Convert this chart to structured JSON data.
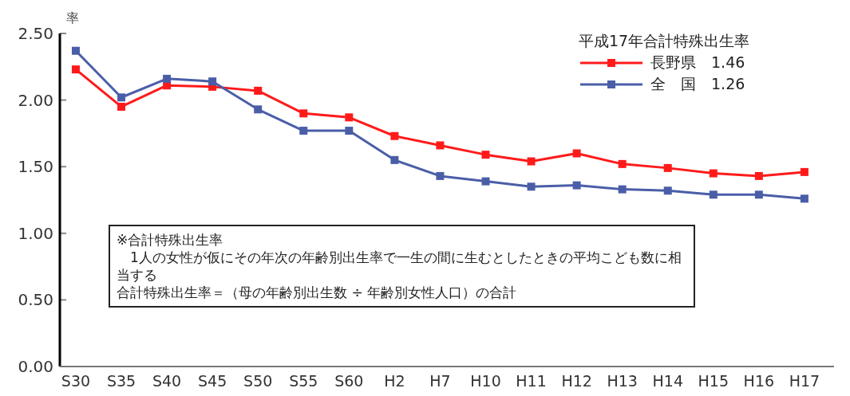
{
  "chart_data": {
    "type": "line",
    "categories": [
      "S30",
      "S35",
      "S40",
      "S45",
      "S50",
      "S55",
      "S60",
      "H2",
      "H7",
      "H10",
      "H11",
      "H12",
      "H13",
      "H14",
      "H15",
      "H16",
      "H17"
    ],
    "series": [
      {
        "name": "長野県　1.46",
        "color": "#ff1a1a",
        "values": [
          2.23,
          1.95,
          2.11,
          2.1,
          2.07,
          1.9,
          1.87,
          1.73,
          1.66,
          1.59,
          1.54,
          1.6,
          1.52,
          1.49,
          1.45,
          1.43,
          1.46
        ]
      },
      {
        "name": "全　国　1.26",
        "color": "#4a5ea8",
        "values": [
          2.37,
          2.02,
          2.16,
          2.14,
          1.93,
          1.77,
          1.77,
          1.55,
          1.43,
          1.39,
          1.35,
          1.36,
          1.33,
          1.32,
          1.29,
          1.29,
          1.26
        ]
      }
    ],
    "ylabel": "率",
    "legend_title": "平成17年合計特殊出生率",
    "legend": "top right",
    "ylim": [
      0,
      2.5
    ],
    "yticks": [
      {
        "value": 0,
        "label": "0.00"
      },
      {
        "value": 0.5,
        "label": "0.50"
      },
      {
        "value": 1,
        "label": "1.00"
      },
      {
        "value": 1.5,
        "label": "1.50"
      },
      {
        "value": 2,
        "label": "2.00"
      },
      {
        "value": 2.5,
        "label": "2.50"
      }
    ],
    "marker": "square",
    "line_style": "solid",
    "grid": false,
    "annotations": [
      "※合計特殊出生率",
      "　1人の女性が仮にその年次の年齢別出生率で一生の間に生むとしたときの平均こども数に相当する",
      "合計特殊出生率＝（母の年齢別出生数 ÷ 年齢別女性人口）の合計"
    ]
  }
}
